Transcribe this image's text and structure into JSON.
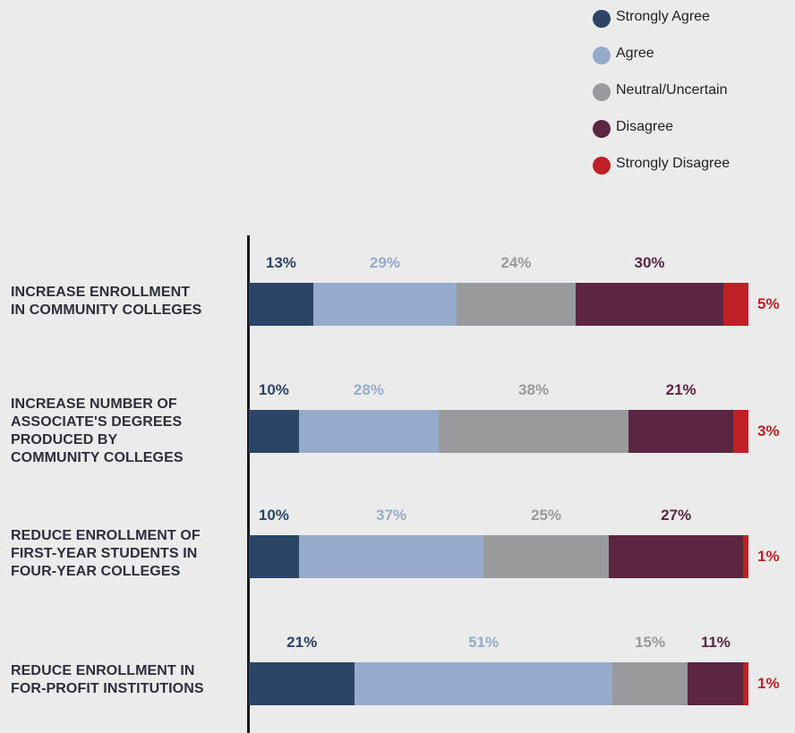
{
  "colors": {
    "Strongly Agree": "#2c4466",
    "Agree": "#96abcb",
    "Neutral/Uncertain": "#999a9c",
    "Disagree": "#5c2642",
    "Strongly Disagree": "#bf2026",
    "text_Strongly Agree": "#2c4466",
    "text_Agree": "#96abcb",
    "text_Neutral/Uncertain": "#999a9c",
    "text_Disagree": "#5c2642",
    "text_Strongly Disagree": "#bf2026"
  },
  "chart_data": {
    "type": "bar",
    "orientation": "horizontal",
    "stacked": true,
    "legend": {
      "placement": "top-right",
      "entries": [
        "Strongly Agree",
        "Agree",
        "Neutral/Uncertain",
        "Disagree",
        "Strongly Disagree"
      ]
    },
    "categories": [
      [
        "INCREASE ENROLLMENT",
        "IN COMMUNITY COLLEGES"
      ],
      [
        "INCREASE NUMBER OF",
        "ASSOCIATE'S DEGREES",
        "PRODUCED BY",
        "COMMUNITY COLLEGES"
      ],
      [
        "REDUCE ENROLLMENT OF",
        "FIRST-YEAR STUDENTS IN",
        "FOUR-YEAR COLLEGES"
      ],
      [
        "REDUCE ENROLLMENT IN",
        "FOR-PROFIT INSTITUTIONS"
      ]
    ],
    "series": [
      {
        "name": "Strongly Agree",
        "values": [
          13,
          10,
          10,
          21
        ]
      },
      {
        "name": "Agree",
        "values": [
          29,
          28,
          37,
          51
        ]
      },
      {
        "name": "Neutral/Uncertain",
        "values": [
          24,
          38,
          25,
          15
        ]
      },
      {
        "name": "Disagree",
        "values": [
          30,
          21,
          27,
          11
        ]
      },
      {
        "name": "Strongly Disagree",
        "values": [
          5,
          3,
          1,
          1
        ]
      }
    ],
    "value_labels": [
      [
        "13%",
        "29%",
        "24%",
        "30%",
        "5%"
      ],
      [
        "10%",
        "28%",
        "38%",
        "21%",
        "3%"
      ],
      [
        "10%",
        "37%",
        "25%",
        "27%",
        "1%"
      ],
      [
        "21%",
        "51%",
        "15%",
        "11%",
        "1%"
      ]
    ],
    "xlim": [
      0,
      100
    ],
    "grid": false
  }
}
